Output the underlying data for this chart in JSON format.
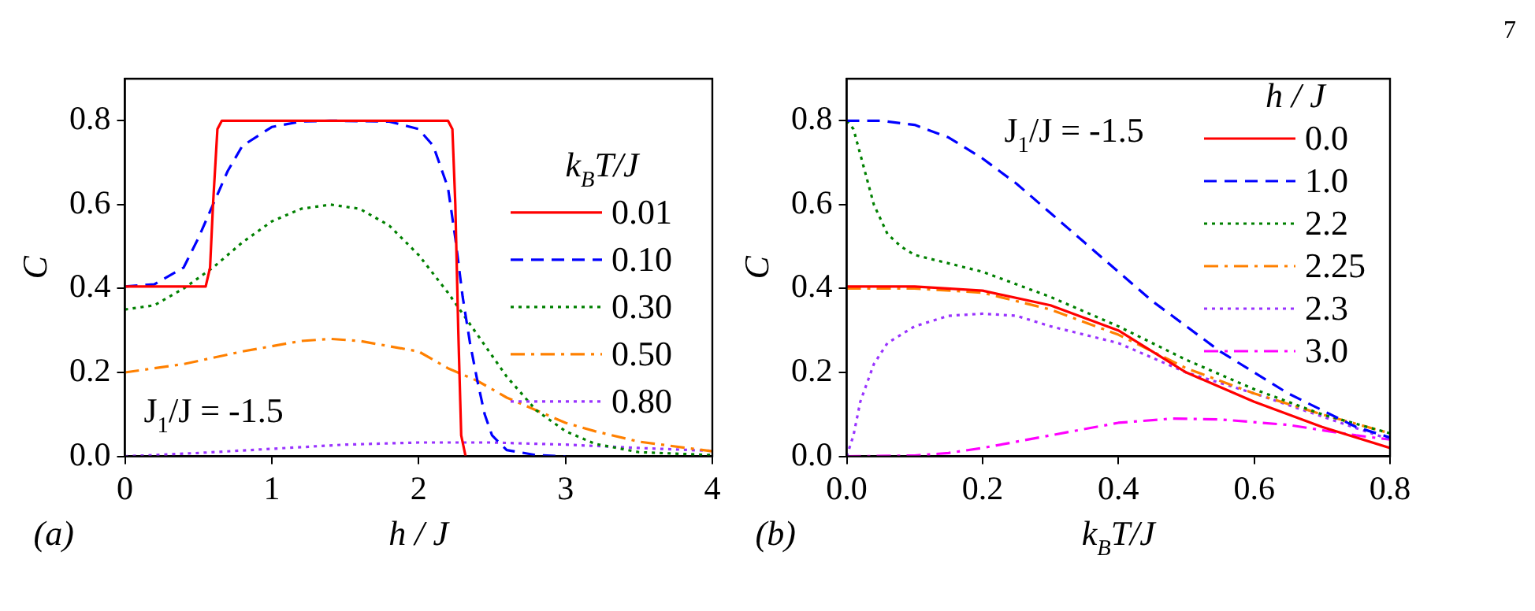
{
  "chart_data": [
    {
      "type": "line",
      "xlabel": "h / J",
      "ylabel": "C",
      "legend_title": "k$_{B}$T/J",
      "legend": "right",
      "grid": false,
      "marker": "none",
      "annotations": [
        "J$_{1}$/J = -1.5",
        "(a)"
      ],
      "xlim": [
        0,
        4
      ],
      "xticks": [
        0,
        1,
        2,
        3,
        4
      ],
      "ylim": [
        0,
        0.9
      ],
      "yticks": [
        {
          "value": 0,
          "label": "0.0"
        },
        {
          "value": 0.2,
          "label": "0.2"
        },
        {
          "value": 0.4,
          "label": "0.4"
        },
        {
          "value": 0.6,
          "label": "0.6"
        },
        {
          "value": 0.8,
          "label": "0.8"
        }
      ],
      "series": [
        {
          "name": "0.01",
          "color": "#ff0000",
          "line_style": "solid",
          "x": [
            0,
            0.55,
            0.58,
            0.6,
            0.63,
            0.66,
            2.2,
            2.23,
            2.25,
            2.27,
            2.29,
            2.32
          ],
          "values": [
            0.405,
            0.405,
            0.45,
            0.6,
            0.78,
            0.8,
            0.8,
            0.78,
            0.6,
            0.3,
            0.05,
            0
          ]
        },
        {
          "name": "0.10",
          "color": "#0000ff",
          "line_style": "dashed",
          "x": [
            0,
            0.2,
            0.4,
            0.5,
            0.6,
            0.7,
            0.8,
            1.0,
            1.2,
            1.4,
            1.8,
            2.0,
            2.1,
            2.2,
            2.25,
            2.3,
            2.35,
            2.4,
            2.45,
            2.5,
            2.6,
            2.8,
            3
          ],
          "values": [
            0.405,
            0.41,
            0.45,
            0.52,
            0.6,
            0.68,
            0.74,
            0.785,
            0.798,
            0.8,
            0.798,
            0.78,
            0.74,
            0.64,
            0.52,
            0.38,
            0.27,
            0.18,
            0.1,
            0.05,
            0.015,
            0.003,
            0
          ]
        },
        {
          "name": "0.30",
          "color": "#008000",
          "line_style": "dotted",
          "x": [
            0,
            0.2,
            0.4,
            0.6,
            0.8,
            1.0,
            1.2,
            1.4,
            1.6,
            1.8,
            2.0,
            2.2,
            2.4,
            2.6,
            2.8,
            3.0,
            3.2,
            3.5,
            4
          ],
          "values": [
            0.35,
            0.36,
            0.4,
            0.45,
            0.51,
            0.56,
            0.59,
            0.6,
            0.59,
            0.55,
            0.48,
            0.39,
            0.29,
            0.19,
            0.11,
            0.06,
            0.03,
            0.01,
            0.003
          ]
        },
        {
          "name": "0.50",
          "color": "#ff8000",
          "line_style": "dashdot",
          "x": [
            0,
            0.4,
            0.8,
            1.2,
            1.4,
            1.6,
            2.0,
            2.2,
            2.4,
            2.6,
            2.8,
            3.0,
            3.2,
            3.5,
            4
          ],
          "values": [
            0.2,
            0.22,
            0.25,
            0.275,
            0.28,
            0.275,
            0.25,
            0.21,
            0.18,
            0.14,
            0.11,
            0.08,
            0.06,
            0.035,
            0.012
          ]
        },
        {
          "name": "0.80",
          "color": "#9933ff",
          "line_style": "dotted",
          "x": [
            0,
            0.5,
            1,
            1.5,
            2,
            2.5,
            3,
            3.5,
            4
          ],
          "values": [
            0,
            0.008,
            0.018,
            0.028,
            0.033,
            0.033,
            0.028,
            0.02,
            0.013
          ]
        }
      ]
    },
    {
      "type": "line",
      "xlabel": "k$_{B}$T/J",
      "ylabel": "C",
      "legend_title": "h / J",
      "legend": "top right",
      "grid": false,
      "marker": "none",
      "annotations": [
        "J$_{1}$/J = -1.5",
        "(b)",
        "7"
      ],
      "xlim": [
        0,
        0.8
      ],
      "xticks": [
        {
          "value": 0,
          "label": "0.0"
        },
        0.2,
        0.4,
        0.6,
        0.8
      ],
      "ylim": [
        0,
        0.9
      ],
      "yticks": [
        {
          "value": 0,
          "label": "0.0"
        },
        {
          "value": 0.2,
          "label": "0.2"
        },
        {
          "value": 0.4,
          "label": "0.4"
        },
        {
          "value": 0.6,
          "label": "0.6"
        },
        {
          "value": 0.8,
          "label": "0.8"
        }
      ],
      "series": [
        {
          "name": "0.0",
          "color": "#ff0000",
          "line_style": "solid",
          "x": [
            0,
            0.1,
            0.2,
            0.3,
            0.4,
            0.5,
            0.6,
            0.7,
            0.8
          ],
          "values": [
            0.405,
            0.405,
            0.395,
            0.36,
            0.3,
            0.2,
            0.13,
            0.07,
            0.02
          ]
        },
        {
          "name": "1.0",
          "color": "#0000ff",
          "line_style": "dashed",
          "x": [
            0,
            0.05,
            0.1,
            0.15,
            0.2,
            0.25,
            0.3,
            0.35,
            0.4,
            0.45,
            0.5,
            0.55,
            0.6,
            0.65,
            0.7,
            0.75,
            0.8
          ],
          "values": [
            0.8,
            0.8,
            0.79,
            0.76,
            0.71,
            0.65,
            0.58,
            0.51,
            0.44,
            0.37,
            0.31,
            0.25,
            0.2,
            0.15,
            0.11,
            0.07,
            0.045
          ]
        },
        {
          "name": "2.2",
          "color": "#008000",
          "line_style": "dotted",
          "x": [
            0,
            0.01,
            0.02,
            0.04,
            0.06,
            0.08,
            0.1,
            0.2,
            0.3,
            0.4,
            0.5,
            0.6,
            0.7,
            0.8
          ],
          "values": [
            0.8,
            0.78,
            0.72,
            0.6,
            0.53,
            0.5,
            0.48,
            0.44,
            0.38,
            0.31,
            0.23,
            0.16,
            0.1,
            0.055
          ]
        },
        {
          "name": "2.25",
          "color": "#ff8000",
          "line_style": "dashdot",
          "x": [
            0,
            0.1,
            0.2,
            0.3,
            0.4,
            0.5,
            0.6,
            0.7,
            0.8
          ],
          "values": [
            0.4,
            0.4,
            0.39,
            0.35,
            0.29,
            0.21,
            0.15,
            0.1,
            0.055
          ]
        },
        {
          "name": "2.3",
          "color": "#9933ff",
          "line_style": "dotted",
          "x": [
            0,
            0.01,
            0.02,
            0.04,
            0.06,
            0.1,
            0.15,
            0.2,
            0.25,
            0.3,
            0.4,
            0.5,
            0.6,
            0.7,
            0.8
          ],
          "values": [
            0,
            0.05,
            0.13,
            0.22,
            0.27,
            0.31,
            0.335,
            0.34,
            0.335,
            0.31,
            0.27,
            0.2,
            0.15,
            0.095,
            0.04
          ]
        },
        {
          "name": "3.0",
          "color": "#ff00ff",
          "line_style": "dashdot",
          "x": [
            0,
            0.1,
            0.15,
            0.2,
            0.3,
            0.4,
            0.48,
            0.55,
            0.65,
            0.75,
            0.8
          ],
          "values": [
            0,
            0.002,
            0.008,
            0.02,
            0.05,
            0.08,
            0.09,
            0.088,
            0.075,
            0.05,
            0.04
          ]
        }
      ]
    }
  ]
}
